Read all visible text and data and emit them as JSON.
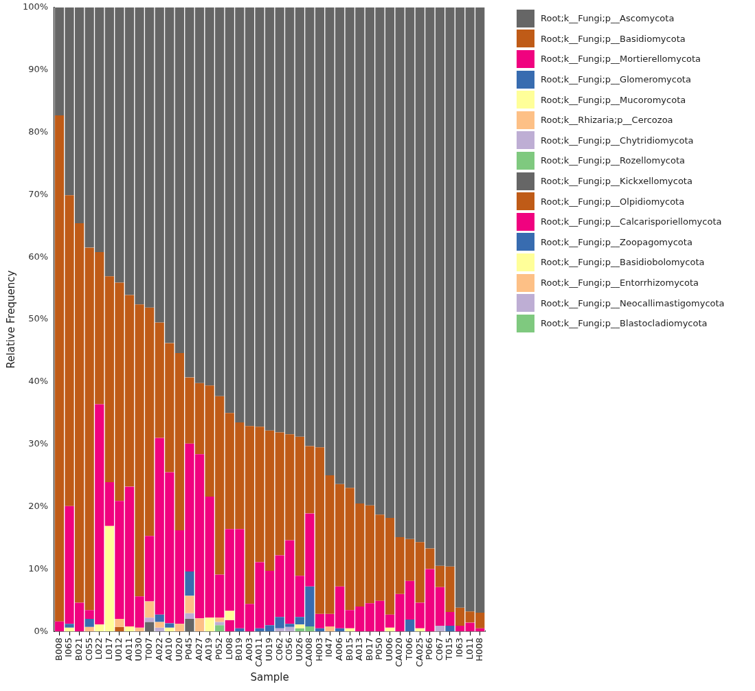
{
  "chart_data": {
    "type": "bar",
    "stacked": true,
    "xlabel": "Sample",
    "ylabel": "Relative Frequency",
    "categories": [
      "B008",
      "I065",
      "B021",
      "C055",
      "L022",
      "L017",
      "U012",
      "A011",
      "U030",
      "T007",
      "A022",
      "A010",
      "U020",
      "P045",
      "A027",
      "A019",
      "P052",
      "L008",
      "B019",
      "A003",
      "CA011",
      "U019",
      "C062",
      "C056",
      "U026",
      "CA008",
      "H003",
      "I047",
      "A006",
      "B015",
      "A013",
      "B017",
      "P050",
      "U006",
      "CA020",
      "T006",
      "CA025",
      "P066",
      "C067",
      "T015",
      "I063",
      "L011",
      "H008"
    ],
    "ylim": [
      0,
      100
    ],
    "yticks": [
      {
        "value": 0,
        "label": "0%"
      },
      {
        "value": 10,
        "label": "10%"
      },
      {
        "value": 20,
        "label": "20%"
      },
      {
        "value": 30,
        "label": "30%"
      },
      {
        "value": 40,
        "label": "40%"
      },
      {
        "value": 50,
        "label": "50%"
      },
      {
        "value": 60,
        "label": "60%"
      },
      {
        "value": 70,
        "label": "70%"
      },
      {
        "value": 80,
        "label": "80%"
      },
      {
        "value": 90,
        "label": "90%"
      },
      {
        "value": 100,
        "label": "100%"
      }
    ],
    "grid": false,
    "legend": "top right",
    "series": [
      {
        "name": "Root;k__Fungi;p__Blastocladiomycota",
        "color": "#7fc97f",
        "values": [
          0,
          0,
          0,
          0,
          0,
          0,
          0,
          0,
          0,
          0,
          0,
          0,
          0,
          0,
          0,
          0,
          0,
          0,
          0,
          0,
          0,
          0,
          0,
          0,
          0,
          0,
          0,
          0,
          0,
          0,
          0,
          0,
          0,
          0,
          0,
          0,
          0,
          0,
          0,
          0,
          0,
          0,
          0
        ]
      },
      {
        "name": "Root;k__Fungi;p__Neocallimastigomycota",
        "color": "#beaed4",
        "values": [
          0,
          0,
          0,
          0,
          0,
          0,
          0,
          0,
          0,
          0,
          0,
          0,
          0,
          0,
          0,
          0,
          0,
          0,
          0,
          0,
          0,
          0,
          0,
          0,
          0,
          0,
          0,
          0,
          0,
          0,
          0,
          0,
          0,
          0,
          0,
          0,
          0,
          0,
          0,
          0,
          0,
          0,
          0
        ]
      },
      {
        "name": "Root;k__Fungi;p__Entorrhizomycota",
        "color": "#fdc086",
        "values": [
          0,
          0,
          0,
          0,
          0,
          0,
          0,
          0,
          0,
          0,
          0,
          0,
          0,
          0,
          0,
          0,
          0,
          0,
          0,
          0,
          0,
          0,
          0,
          0,
          0,
          0,
          0,
          0,
          0,
          0,
          0,
          0,
          0,
          0,
          0,
          0,
          0,
          0,
          0,
          0,
          0,
          0,
          0
        ]
      },
      {
        "name": "Root;k__Fungi;p__Basidiobolomycota",
        "color": "#ffff99",
        "values": [
          0,
          0,
          0,
          0,
          0,
          0,
          0,
          0,
          0,
          0,
          0,
          0,
          0,
          0,
          0,
          0,
          0,
          0,
          0,
          0,
          0,
          0,
          0,
          0,
          0,
          0,
          0,
          0,
          0,
          0,
          0,
          0,
          0,
          0,
          0,
          0,
          0,
          0,
          0,
          0,
          0,
          0,
          0
        ]
      },
      {
        "name": "Root;k__Fungi;p__Zoopagomycota",
        "color": "#386cb0",
        "values": [
          0,
          0,
          0,
          0,
          0,
          0,
          0,
          0,
          0,
          0,
          0,
          0,
          0,
          0,
          0,
          0,
          0,
          0,
          0,
          0,
          0,
          0,
          0,
          0,
          0,
          0,
          0,
          0,
          0,
          0,
          0,
          0,
          0,
          0,
          0,
          0,
          0,
          0,
          0,
          0,
          0,
          0,
          0
        ]
      },
      {
        "name": "Root;k__Fungi;p__Calcarisporiellomycota",
        "color": "#f0027f",
        "values": [
          0,
          0,
          0,
          0,
          0,
          0,
          0,
          0,
          0,
          0,
          0,
          0,
          0,
          0,
          0,
          0,
          0,
          1.8,
          0,
          0,
          0,
          0,
          0,
          0,
          0,
          0,
          0,
          0,
          0,
          0,
          0,
          0,
          0,
          0,
          0,
          0,
          0,
          0,
          0,
          0,
          0,
          0,
          0
        ]
      },
      {
        "name": "Root;k__Fungi;p__Olpidiomycota",
        "color": "#bf5b17",
        "values": [
          0,
          0,
          0,
          0,
          0,
          0,
          0.7,
          0,
          0,
          0,
          0,
          0,
          0,
          0,
          0,
          0,
          0,
          0,
          0,
          0,
          0,
          0,
          0,
          0,
          0,
          0,
          0,
          0,
          0,
          0,
          0,
          0,
          0,
          0,
          0,
          0,
          0,
          0,
          0,
          0,
          0,
          0,
          0
        ]
      },
      {
        "name": "Root;k__Fungi;p__Kickxellomycota",
        "color": "#666666",
        "values": [
          0,
          0,
          0,
          0,
          0,
          0,
          0,
          0,
          0,
          1.5,
          0,
          0,
          0,
          2.0,
          0,
          0,
          0,
          0,
          0,
          0,
          0,
          0,
          0,
          0,
          0,
          0,
          0,
          0,
          0,
          0,
          0,
          0,
          0,
          0,
          0,
          0,
          0,
          0,
          0,
          0,
          0,
          0,
          0
        ]
      },
      {
        "name": "Root;k__Fungi;p__Rozellomycota",
        "color": "#7fc97f",
        "values": [
          0,
          0,
          0,
          0,
          0,
          0,
          0,
          0,
          0,
          0,
          0,
          0,
          0,
          0,
          0,
          0,
          1.0,
          0,
          0,
          0,
          0,
          0,
          0,
          0,
          0.5,
          0.8,
          0,
          0,
          0,
          0,
          0,
          0,
          0,
          0,
          0,
          0,
          0,
          0,
          0,
          0,
          0,
          0,
          0
        ]
      },
      {
        "name": "Root;k__Fungi;p__Chytridiomycota",
        "color": "#beaed4",
        "values": [
          0,
          0,
          0,
          0,
          0,
          0,
          0,
          0,
          0,
          0.7,
          0.6,
          0,
          0,
          0.9,
          0,
          0,
          0.5,
          0,
          0,
          0,
          0,
          0,
          0.5,
          0.7,
          0,
          0,
          0,
          0,
          0,
          0,
          0,
          0,
          0,
          0,
          0,
          0,
          0,
          0,
          0.9,
          0,
          0,
          0,
          0
        ]
      },
      {
        "name": "Root;k__Rhizaria;p__Cercozoa",
        "color": "#fdc086",
        "values": [
          0,
          0,
          0,
          0.7,
          0,
          0,
          1.3,
          0,
          0.6,
          2.6,
          0.9,
          0,
          1.2,
          2.8,
          2.1,
          0,
          0.7,
          0,
          0,
          0,
          0,
          0,
          0,
          0,
          0,
          0,
          0,
          0.8,
          0,
          0,
          0,
          0,
          0,
          0,
          0,
          0,
          0,
          0,
          0,
          0,
          0,
          0,
          0
        ]
      },
      {
        "name": "Root;k__Fungi;p__Mucoromycota",
        "color": "#ffff99",
        "values": [
          0,
          0.6,
          0,
          0,
          1.1,
          16.9,
          0,
          0.8,
          0,
          0,
          0,
          0.6,
          0,
          0,
          0,
          2.2,
          0,
          1.5,
          0,
          0,
          0,
          0,
          0,
          0,
          0.6,
          0,
          0,
          0,
          0,
          0.5,
          0,
          0,
          0,
          0.6,
          0,
          0,
          0.5,
          0,
          0,
          0,
          0,
          0,
          0
        ]
      },
      {
        "name": "Root;k__Fungi;p__Glomeromycota",
        "color": "#386cb0",
        "values": [
          0,
          0.6,
          0,
          1.3,
          0,
          0,
          0,
          0,
          0,
          0,
          1.2,
          0.7,
          0,
          3.9,
          0,
          0,
          0,
          0,
          0.5,
          0,
          0.5,
          1.0,
          1.8,
          0.5,
          1.2,
          6.4,
          0.5,
          0,
          0.5,
          0,
          0,
          0,
          0,
          0,
          0,
          1.9,
          0,
          0,
          0,
          0.9,
          0,
          0,
          0
        ]
      },
      {
        "name": "Root;k__Fungi;p__Mortierellomycota",
        "color": "#f0027f",
        "values": [
          1.6,
          18.9,
          4.6,
          1.4,
          35.3,
          7.0,
          18.9,
          22.4,
          5.0,
          10.5,
          28.3,
          24.2,
          15.0,
          20.5,
          26.3,
          19.4,
          6.9,
          13.1,
          15.9,
          4.4,
          10.6,
          8.7,
          9.9,
          13.4,
          6.6,
          11.7,
          2.3,
          2.0,
          6.7,
          2.9,
          4.0,
          4.5,
          4.9,
          2.1,
          6.0,
          6.2,
          4.1,
          10.0,
          6.2,
          2.2,
          0.9,
          1.4,
          0.5
        ]
      },
      {
        "name": "Root;k__Fungi;p__Basidiomycota",
        "color": "#bf5b17",
        "values": [
          81.1,
          49.8,
          60.8,
          58.1,
          24.4,
          33.0,
          35.0,
          30.7,
          46.8,
          36.6,
          18.5,
          20.7,
          28.4,
          10.6,
          11.4,
          17.8,
          28.6,
          18.6,
          17.1,
          28.5,
          21.7,
          22.5,
          19.7,
          17.0,
          22.3,
          10.8,
          26.7,
          22.2,
          16.4,
          19.6,
          16.5,
          15.7,
          13.8,
          15.5,
          9.1,
          6.7,
          9.7,
          3.3,
          3.4,
          7.3,
          2.9,
          1.8,
          2.5
        ]
      },
      {
        "name": "Root;k__Fungi;p__Ascomycota",
        "color": "#666666",
        "values": [
          17.3,
          30.1,
          34.6,
          38.5,
          39.2,
          43.1,
          44.1,
          46.1,
          47.6,
          48.1,
          50.5,
          53.8,
          55.4,
          59.3,
          60.2,
          60.6,
          62.3,
          65.0,
          66.5,
          67.1,
          67.2,
          67.8,
          68.1,
          68.4,
          68.8,
          70.3,
          70.5,
          75.0,
          76.4,
          77.0,
          79.5,
          79.8,
          81.3,
          81.8,
          84.9,
          85.2,
          85.7,
          86.7,
          89.5,
          89.6,
          96.2,
          96.8,
          97.0
        ]
      }
    ]
  }
}
